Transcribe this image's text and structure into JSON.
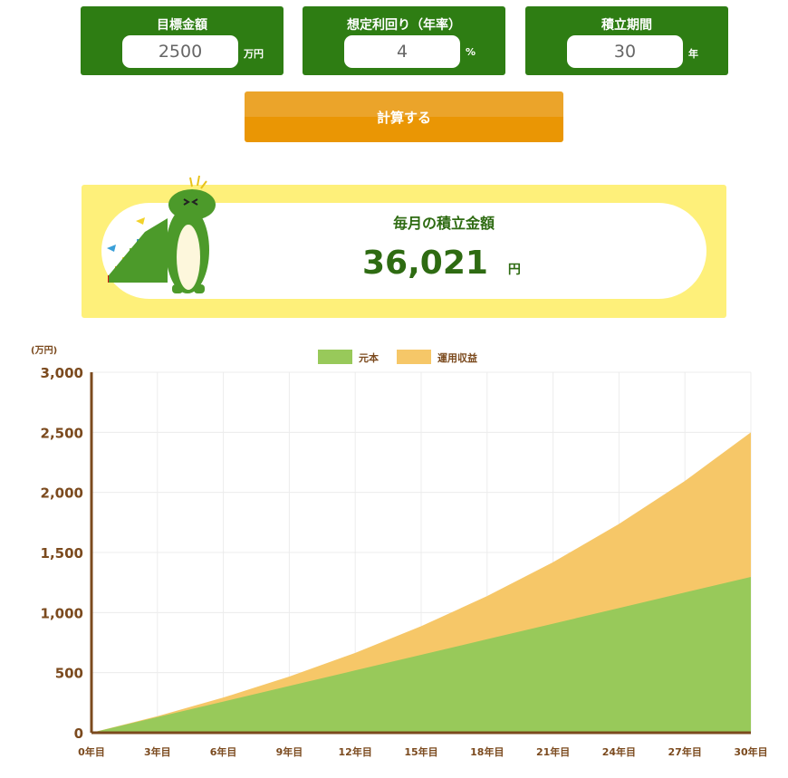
{
  "inputs": [
    {
      "label": "目標金額",
      "value": "2500",
      "unit": "万円"
    },
    {
      "label": "想定利回り（年率）",
      "value": "4",
      "unit": "%"
    },
    {
      "label": "積立期間",
      "value": "30",
      "unit": "年"
    }
  ],
  "calculate_label": "計算する",
  "result": {
    "title": "毎月の積立金額",
    "value": "36,021",
    "unit": "円"
  },
  "colors": {
    "panel": "#2e7d13",
    "button": "#ea9604",
    "result_bg": "#fef07a",
    "principal": "#98c95a",
    "gains": "#f6c768",
    "axis": "#7b4a1e"
  },
  "chart_data": {
    "type": "area",
    "stacked": true,
    "y_unit_label": "(万円)",
    "ylim": [
      0,
      3000
    ],
    "y_ticks": [
      "0",
      "500",
      "1,000",
      "1,500",
      "2,000",
      "2,500",
      "3,000"
    ],
    "categories": [
      "0年目",
      "3年目",
      "6年目",
      "9年目",
      "12年目",
      "15年目",
      "18年目",
      "21年目",
      "24年目",
      "27年目",
      "30年目"
    ],
    "legend_position": "top",
    "grid": true,
    "series": [
      {
        "name": "元本",
        "color": "#98c95a",
        "values": [
          0,
          129.7,
          259.4,
          389.0,
          518.7,
          648.4,
          778.1,
          907.8,
          1037.4,
          1167.1,
          1296.8
        ]
      },
      {
        "name": "運用収益",
        "color": "#f6c768",
        "values": [
          0,
          7.8,
          33.2,
          78.3,
          145.6,
          238.0,
          358.7,
          511.2,
          699.7,
          928.6,
          1203.2
        ]
      }
    ]
  }
}
